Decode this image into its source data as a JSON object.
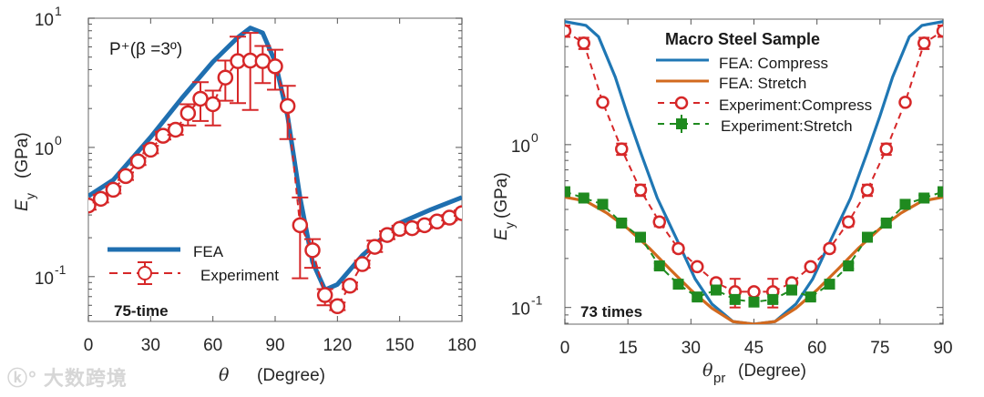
{
  "watermark": "ⓚ° 大数跨境",
  "chart_data": [
    {
      "type": "line",
      "xlabel_symbol": "θ",
      "xlabel_unit": "(Degree)",
      "ylabel_symbol": "E",
      "ylabel_sub": "y",
      "ylabel_unit": "(GPa)",
      "yscale": "log",
      "xlim": [
        0,
        180
      ],
      "ylim": [
        0.045,
        10
      ],
      "xticks": [
        0,
        30,
        60,
        90,
        120,
        150,
        180
      ],
      "yticks": [
        {
          "value": 10,
          "base": "10",
          "exp": "1"
        },
        {
          "value": 1,
          "base": "10",
          "exp": "0"
        },
        {
          "value": 0.1,
          "base": "10",
          "exp": "-1"
        }
      ],
      "annotation": "P⁺(β =3º)",
      "label": "75-time",
      "legend": {
        "placement": "bottom-left",
        "entries": [
          "FEA",
          "Experiment"
        ]
      },
      "series": [
        {
          "name": "FEA",
          "style": "solid",
          "color": "#1f6fb0",
          "x": [
            0,
            12,
            30,
            45,
            60,
            72,
            78,
            84,
            90,
            96,
            102,
            108,
            114,
            120,
            132,
            150,
            165,
            180
          ],
          "y": [
            0.42,
            0.56,
            1.2,
            2.4,
            4.6,
            7.1,
            8.4,
            7.7,
            4.6,
            1.74,
            0.41,
            0.13,
            0.079,
            0.087,
            0.146,
            0.26,
            0.33,
            0.41
          ]
        },
        {
          "name": "Experiment",
          "style": "dashed-errorbar-circle",
          "color": "#d62728",
          "x": [
            0,
            6,
            12,
            18,
            24,
            30,
            36,
            42,
            48,
            54,
            60,
            66,
            72,
            78,
            84,
            90,
            96,
            102,
            108,
            114,
            120,
            126,
            132,
            138,
            144,
            150,
            156,
            162,
            168,
            174,
            180
          ],
          "y": [
            0.355,
            0.4,
            0.47,
            0.6,
            0.78,
            0.96,
            1.23,
            1.37,
            1.84,
            2.38,
            2.16,
            3.47,
            4.65,
            4.7,
            4.65,
            4.24,
            2.09,
            0.25,
            0.16,
            0.072,
            0.059,
            0.085,
            0.125,
            0.17,
            0.21,
            0.234,
            0.237,
            0.25,
            0.267,
            0.286,
            0.31
          ],
          "y_low": [
            0.33,
            0.375,
            0.44,
            0.56,
            0.73,
            0.9,
            1.15,
            1.25,
            1.48,
            1.6,
            1.48,
            2.3,
            2.2,
            1.95,
            3.15,
            2.8,
            1.16,
            0.097,
            0.117,
            0.06,
            0.055,
            0.08,
            0.117,
            0.155,
            0.195,
            0.22,
            0.225,
            0.237,
            0.255,
            0.272,
            0.295
          ],
          "y_high": [
            0.38,
            0.43,
            0.5,
            0.64,
            0.83,
            1.03,
            1.32,
            1.5,
            2.16,
            3.2,
            2.75,
            4.7,
            7.2,
            7.7,
            6.1,
            5.7,
            3.0,
            0.41,
            0.195,
            0.08,
            0.063,
            0.09,
            0.133,
            0.19,
            0.225,
            0.248,
            0.25,
            0.263,
            0.28,
            0.3,
            0.325
          ]
        }
      ]
    },
    {
      "type": "line",
      "title": "Macro Steel Sample",
      "xlabel_symbol": "θ",
      "xlabel_sub": "pr",
      "xlabel_unit": "(Degree)",
      "ylabel_symbol": "E",
      "ylabel_sub": "y",
      "ylabel_unit": "(GPa)",
      "yscale": "log",
      "xlim": [
        0,
        90
      ],
      "ylim": [
        0.079,
        5.9
      ],
      "xticks": [
        0,
        15,
        30,
        45,
        60,
        75,
        90
      ],
      "yticks": [
        {
          "value": 1,
          "base": "10",
          "exp": "0"
        },
        {
          "value": 0.1,
          "base": "10",
          "exp": "-1"
        }
      ],
      "label": "73 times",
      "legend": {
        "placement": "top-center",
        "entries": [
          "FEA: Compress",
          "FEA: Stretch",
          "Experiment:Compress",
          "Experiment:Stretch"
        ]
      },
      "series": [
        {
          "name": "FEA: Compress",
          "style": "solid",
          "color": "#1f77b4",
          "x": [
            0,
            5,
            8,
            12,
            15,
            18,
            22,
            27,
            31,
            35,
            40,
            45,
            50,
            55,
            59,
            63,
            68,
            72,
            75,
            78,
            82,
            85,
            90
          ],
          "y": [
            5.7,
            5.4,
            4.6,
            2.6,
            1.5,
            0.9,
            0.47,
            0.25,
            0.15,
            0.105,
            0.082,
            0.079,
            0.082,
            0.105,
            0.15,
            0.25,
            0.47,
            0.9,
            1.5,
            2.6,
            4.6,
            5.4,
            5.7
          ]
        },
        {
          "name": "FEA: Stretch",
          "style": "solid",
          "color": "#d2691e",
          "x": [
            0,
            5,
            10,
            15,
            20,
            25,
            30,
            35,
            40,
            45,
            50,
            55,
            60,
            65,
            70,
            75,
            80,
            85,
            90
          ],
          "y": [
            0.476,
            0.45,
            0.38,
            0.305,
            0.233,
            0.172,
            0.128,
            0.099,
            0.082,
            0.079,
            0.082,
            0.099,
            0.128,
            0.172,
            0.233,
            0.305,
            0.38,
            0.45,
            0.476
          ]
        },
        {
          "name": "Experiment:Compress",
          "style": "dashed-errorbar-circle",
          "color": "#d62728",
          "x": [
            0,
            4.5,
            9,
            13.5,
            18,
            22.5,
            27,
            31.5,
            36,
            40.5,
            45,
            49.5,
            54,
            58.5,
            63,
            67.5,
            72,
            76.5,
            81,
            85.5,
            90
          ],
          "y": [
            4.99,
            4.2,
            1.82,
            0.94,
            0.526,
            0.335,
            0.23,
            0.178,
            0.142,
            0.125,
            0.125,
            0.125,
            0.142,
            0.178,
            0.23,
            0.335,
            0.526,
            0.94,
            1.82,
            4.2,
            4.99
          ],
          "rel_err": [
            0.08,
            0.08,
            0.04,
            0.08,
            0.08,
            0.06,
            0.05,
            0.04,
            0.05,
            0.2,
            0.04,
            0.2,
            0.05,
            0.04,
            0.05,
            0.06,
            0.08,
            0.08,
            0.04,
            0.08,
            0.08
          ]
        },
        {
          "name": "Experiment:Stretch",
          "style": "dashed-errorbar-square",
          "color": "#1f8a1f",
          "x": [
            0,
            4.5,
            9,
            13.5,
            18,
            22.5,
            27,
            31.5,
            36,
            40.5,
            45,
            49.5,
            54,
            58.5,
            63,
            67.5,
            72,
            76.5,
            81,
            85.5,
            90
          ],
          "y": [
            0.514,
            0.47,
            0.43,
            0.33,
            0.27,
            0.18,
            0.139,
            0.116,
            0.128,
            0.112,
            0.108,
            0.112,
            0.128,
            0.116,
            0.139,
            0.18,
            0.27,
            0.33,
            0.43,
            0.47,
            0.514
          ],
          "rel_err": [
            0.04,
            0.04,
            0.04,
            0.04,
            0.04,
            0.04,
            0.04,
            0.04,
            0.04,
            0.04,
            0.04,
            0.04,
            0.04,
            0.04,
            0.04,
            0.04,
            0.04,
            0.04,
            0.04,
            0.04,
            0.04
          ]
        }
      ]
    }
  ]
}
